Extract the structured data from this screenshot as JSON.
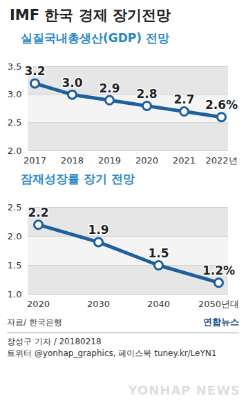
{
  "title": "IMF 한국 경제 장기전망",
  "chart_data": [
    {
      "type": "line",
      "title": "실질국내총생산(GDP) 전망",
      "categories": [
        "2017",
        "2018",
        "2019",
        "2020",
        "2021",
        "2022년"
      ],
      "values": [
        3.2,
        3.0,
        2.9,
        2.8,
        2.7,
        2.6
      ],
      "value_labels": [
        "3.2",
        "3.0",
        "2.9",
        "2.8",
        "2.7",
        "2.6%"
      ],
      "data_labels": true,
      "ylim": [
        2.0,
        3.5
      ],
      "yticks": [
        {
          "value": 2,
          "label": "2.0"
        },
        2.5,
        {
          "value": 3,
          "label": "3.0"
        },
        3.5
      ],
      "grid": true,
      "color": "#1e5f9e",
      "marker": "circle"
    },
    {
      "type": "line",
      "title": "잠재성장률 장기 전망",
      "categories": [
        "2020",
        "2030",
        "2040",
        "2050년대"
      ],
      "values": [
        2.2,
        1.9,
        1.5,
        1.2
      ],
      "value_labels": [
        "2.2",
        "1.9",
        "1.5",
        "1.2%"
      ],
      "data_labels": true,
      "ylim": [
        1.0,
        2.5
      ],
      "yticks": [
        {
          "value": 1,
          "label": "1.0"
        },
        1.5,
        {
          "value": 2,
          "label": "2.0"
        },
        2.5
      ],
      "grid": true,
      "color": "#1e5f9e",
      "marker": "circle"
    }
  ],
  "source": "자료/ 한국은행",
  "logo": "연합뉴스",
  "credit": "장성구 기자 / 20180218",
  "social": "트위터 @yonhap_graphics, 페이스북 tuney.kr/LeYN1",
  "watermark": "YONHAP NEWS"
}
